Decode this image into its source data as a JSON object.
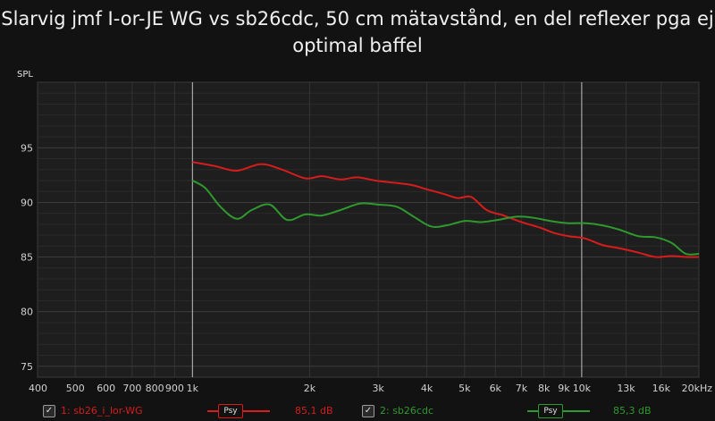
{
  "chart_data": {
    "type": "line",
    "title": "Slarvig jmf I-or-JE WG vs sb26cdc, 50 cm mätavstånd, en del reflexer pga ej optimal baffel",
    "ylabel": "SPL",
    "xunit": "Hz",
    "xscale": "log",
    "xlim": [
      400,
      20000
    ],
    "ylim": [
      74,
      101
    ],
    "yticks": [
      75,
      80,
      85,
      90,
      95
    ],
    "xticks": [
      {
        "v": 400,
        "label": "400"
      },
      {
        "v": 500,
        "label": "500"
      },
      {
        "v": 600,
        "label": "600"
      },
      {
        "v": 700,
        "label": "700"
      },
      {
        "v": 800,
        "label": "800"
      },
      {
        "v": 900,
        "label": "900"
      },
      {
        "v": 1000,
        "label": "1k"
      },
      {
        "v": 2000,
        "label": "2k"
      },
      {
        "v": 3000,
        "label": "3k"
      },
      {
        "v": 4000,
        "label": "4k"
      },
      {
        "v": 5000,
        "label": "5k"
      },
      {
        "v": 6000,
        "label": "6k"
      },
      {
        "v": 7000,
        "label": "7k"
      },
      {
        "v": 8000,
        "label": "8k"
      },
      {
        "v": 9000,
        "label": "9k"
      },
      {
        "v": 10000,
        "label": "10k"
      },
      {
        "v": 13000,
        "label": "13k"
      },
      {
        "v": 16000,
        "label": "16k"
      },
      {
        "v": 20000,
        "label": "20kHz"
      }
    ],
    "vlines": [
      1000,
      10000
    ],
    "grid": true,
    "series": [
      {
        "name": "1: sb26_i_lor-WG",
        "color": "#d81c1c",
        "x": [
          1000,
          1150,
          1300,
          1500,
          1700,
          1950,
          2150,
          2400,
          2650,
          2950,
          3300,
          3650,
          4000,
          4400,
          4800,
          5200,
          5700,
          6300,
          7000,
          7800,
          8500,
          9300,
          10200,
          11300,
          12500,
          14000,
          15500,
          17000,
          18500,
          20000
        ],
        "y": [
          93.7,
          93.3,
          92.9,
          93.5,
          93.0,
          92.2,
          92.4,
          92.1,
          92.3,
          92.0,
          91.8,
          91.6,
          91.2,
          90.8,
          90.4,
          90.5,
          89.3,
          88.8,
          88.2,
          87.7,
          87.2,
          86.9,
          86.7,
          86.1,
          85.8,
          85.4,
          85.0,
          85.1,
          85.0,
          85.0
        ]
      },
      {
        "name": "2: sb26cdc",
        "color": "#2e9a2e",
        "x": [
          1000,
          1080,
          1180,
          1300,
          1420,
          1580,
          1750,
          1950,
          2150,
          2400,
          2700,
          3000,
          3350,
          3700,
          4100,
          4500,
          5000,
          5500,
          6100,
          6800,
          7500,
          8300,
          9200,
          10200,
          11300,
          12500,
          14000,
          15500,
          17000,
          18500,
          20000
        ],
        "y": [
          92.0,
          91.3,
          89.6,
          88.5,
          89.3,
          89.8,
          88.4,
          88.9,
          88.8,
          89.3,
          89.9,
          89.8,
          89.6,
          88.7,
          87.8,
          87.9,
          88.3,
          88.2,
          88.4,
          88.7,
          88.6,
          88.3,
          88.1,
          88.1,
          87.9,
          87.5,
          86.9,
          86.8,
          86.3,
          85.3,
          85.3
        ]
      }
    ]
  },
  "legend": [
    {
      "label": "1: sb26_i_lor-WG",
      "checkbox": "✓",
      "badge": "Psy",
      "value": "85,1 dB",
      "color": "#d81c1c"
    },
    {
      "label": "2: sb26cdc",
      "checkbox": "✓",
      "badge": "Psy",
      "value": "85,3 dB",
      "color": "#2e9a2e"
    }
  ]
}
